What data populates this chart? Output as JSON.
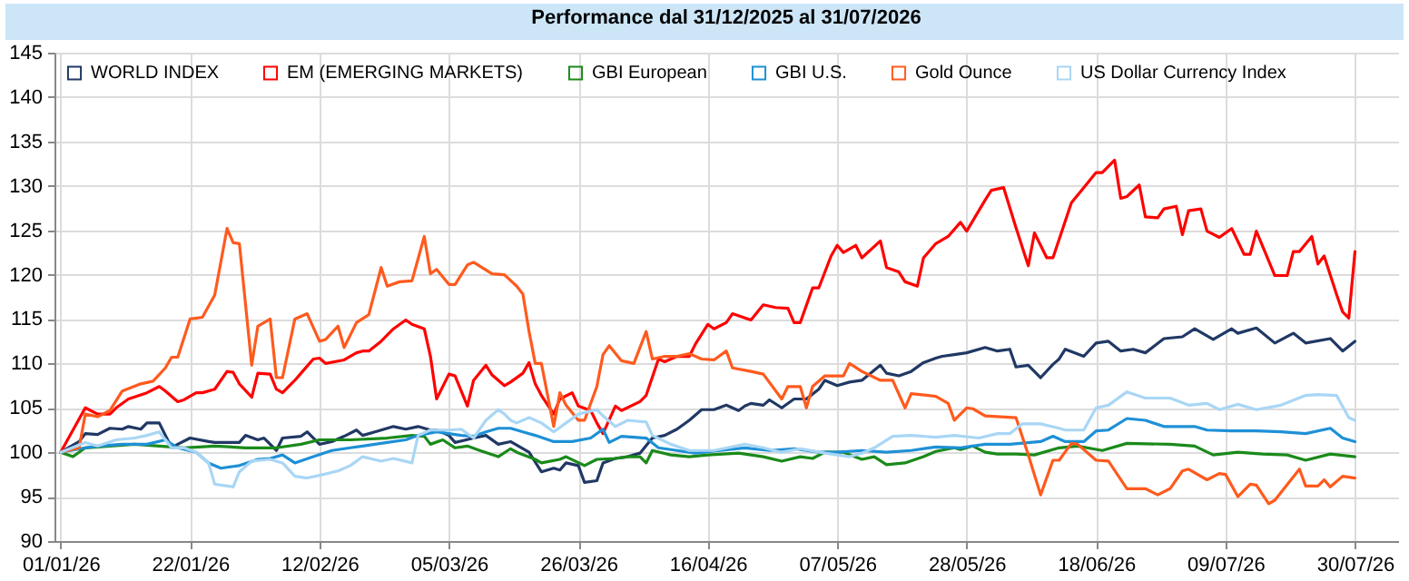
{
  "chart_data": {
    "type": "line",
    "title": "Performance dal 31/12/2025 al 31/07/2026",
    "xlim": [
      "2025-12-31",
      "2026-08-06"
    ],
    "xticks": [
      {
        "value": "2026-01-01",
        "label": "01/01/26"
      },
      {
        "value": "2026-01-22",
        "label": "22/01/26"
      },
      {
        "value": "2026-02-12",
        "label": "12/02/26"
      },
      {
        "value": "2026-03-05",
        "label": "05/03/26"
      },
      {
        "value": "2026-03-26",
        "label": "26/03/26"
      },
      {
        "value": "2026-04-16",
        "label": "16/04/26"
      },
      {
        "value": "2026-05-07",
        "label": "07/05/26"
      },
      {
        "value": "2026-05-28",
        "label": "28/05/26"
      },
      {
        "value": "2026-06-18",
        "label": "18/06/26"
      },
      {
        "value": "2026-07-09",
        "label": "09/07/26"
      },
      {
        "value": "2026-07-30",
        "label": "30/07/26"
      }
    ],
    "ylim": [
      90,
      145
    ],
    "yticks": [
      90,
      95,
      100,
      105,
      110,
      115,
      120,
      125,
      130,
      135,
      140,
      145
    ],
    "grid": true,
    "legend": "top left",
    "line_style": "solid",
    "marker": "none",
    "series": [
      {
        "name": "WORLD INDEX",
        "color": "#203864",
        "x": [
          "2026-01-01",
          "2026-01-04",
          "2026-01-05",
          "2026-01-07",
          "2026-01-09",
          "2026-01-11",
          "2026-01-12",
          "2026-01-14",
          "2026-01-15",
          "2026-01-17",
          "2026-01-19",
          "2026-01-20",
          "2026-01-22",
          "2026-01-25",
          "2026-01-26",
          "2026-01-30",
          "2026-01-31",
          "2026-02-02",
          "2026-02-03",
          "2026-02-05",
          "2026-02-06",
          "2026-02-09",
          "2026-02-10",
          "2026-02-12",
          "2026-02-14",
          "2026-02-16",
          "2026-02-18",
          "2026-02-19",
          "2026-02-21",
          "2026-02-24",
          "2026-02-26",
          "2026-02-28",
          "2026-03-02",
          "2026-03-03",
          "2026-03-05",
          "2026-03-06",
          "2026-03-09",
          "2026-03-11",
          "2026-03-13",
          "2026-03-15",
          "2026-03-18",
          "2026-03-20",
          "2026-03-22",
          "2026-03-23",
          "2026-03-24",
          "2026-03-26",
          "2026-03-27",
          "2026-03-29",
          "2026-03-30",
          "2026-04-01",
          "2026-04-03",
          "2026-04-05",
          "2026-04-07",
          "2026-04-09",
          "2026-04-11",
          "2026-04-13",
          "2026-04-15",
          "2026-04-17",
          "2026-04-19",
          "2026-04-21",
          "2026-04-22",
          "2026-04-23",
          "2026-04-25",
          "2026-04-26",
          "2026-04-28",
          "2026-04-30",
          "2026-05-02",
          "2026-05-04",
          "2026-05-05",
          "2026-05-07",
          "2026-05-09",
          "2026-05-11",
          "2026-05-14",
          "2026-05-15",
          "2026-05-17",
          "2026-05-19",
          "2026-05-21",
          "2026-05-23",
          "2026-05-24",
          "2026-05-26",
          "2026-05-28",
          "2026-05-31",
          "2026-06-02",
          "2026-06-04",
          "2026-06-05",
          "2026-06-07",
          "2026-06-09",
          "2026-06-11",
          "2026-06-12",
          "2026-06-13",
          "2026-06-16",
          "2026-06-18",
          "2026-06-20",
          "2026-06-22",
          "2026-06-24",
          "2026-06-26",
          "2026-06-29",
          "2026-07-02",
          "2026-07-04",
          "2026-07-07",
          "2026-07-10",
          "2026-07-11",
          "2026-07-14",
          "2026-07-17",
          "2026-07-20",
          "2026-07-22",
          "2026-07-26",
          "2026-07-28",
          "2026-07-30"
        ],
        "values": [
          100,
          101.2,
          102.1,
          102,
          102.7,
          102.6,
          102.9,
          102.6,
          103.3,
          103.3,
          100.5,
          100.9,
          101.6,
          101.2,
          101.1,
          101.1,
          101.9,
          101.4,
          101.6,
          100.2,
          101.6,
          101.8,
          102.3,
          100.9,
          101.2,
          101.8,
          102.5,
          101.9,
          102.3,
          102.9,
          102.6,
          102.9,
          102.5,
          102.5,
          101.9,
          101.1,
          101.6,
          101.9,
          100.9,
          101.2,
          100,
          97.8,
          98.2,
          98,
          98.8,
          98.5,
          96.6,
          96.8,
          98.8,
          99.3,
          99.5,
          99.9,
          101.6,
          101.9,
          102.6,
          103.6,
          104.8,
          104.8,
          105.3,
          104.7,
          105.2,
          105.5,
          105.3,
          105.9,
          105,
          106,
          106,
          107.1,
          108.1,
          107.5,
          107.9,
          108.1,
          109.8,
          108.9,
          108.6,
          109.1,
          110.1,
          110.6,
          110.8,
          111,
          111.2,
          111.8,
          111.4,
          111.6,
          109.6,
          109.8,
          108.4,
          109.9,
          110.5,
          111.6,
          110.8,
          112.3,
          112.5,
          111.4,
          111.6,
          111.2,
          112.8,
          113,
          113.9,
          112.7,
          113.9,
          113.4,
          114,
          112.3,
          113.4,
          112.3,
          112.8,
          111.4,
          112.5
        ]
      },
      {
        "name": "EM (EMERGING MARKETS)",
        "color": "#ff0000",
        "x": [
          "2026-01-01",
          "2026-01-05",
          "2026-01-07",
          "2026-01-09",
          "2026-01-10",
          "2026-01-12",
          "2026-01-15",
          "2026-01-17",
          "2026-01-18",
          "2026-01-20",
          "2026-01-21",
          "2026-01-23",
          "2026-01-24",
          "2026-01-26",
          "2026-01-28",
          "2026-01-29",
          "2026-01-30",
          "2026-02-01",
          "2026-02-02",
          "2026-02-04",
          "2026-02-05",
          "2026-02-06",
          "2026-02-08",
          "2026-02-09",
          "2026-02-11",
          "2026-02-12",
          "2026-02-13",
          "2026-02-16",
          "2026-02-18",
          "2026-02-19",
          "2026-02-20",
          "2026-02-22",
          "2026-02-24",
          "2026-02-26",
          "2026-02-27",
          "2026-03-01",
          "2026-03-02",
          "2026-03-03",
          "2026-03-05",
          "2026-03-06",
          "2026-03-08",
          "2026-03-09",
          "2026-03-11",
          "2026-03-12",
          "2026-03-14",
          "2026-03-15",
          "2026-03-17",
          "2026-03-18",
          "2026-03-19",
          "2026-03-20",
          "2026-03-22",
          "2026-03-23",
          "2026-03-25",
          "2026-03-26",
          "2026-03-28",
          "2026-03-29",
          "2026-03-30",
          "2026-04-01",
          "2026-04-02",
          "2026-04-05",
          "2026-04-06",
          "2026-04-08",
          "2026-04-09",
          "2026-04-11",
          "2026-04-13",
          "2026-04-14",
          "2026-04-16",
          "2026-04-17",
          "2026-04-19",
          "2026-04-20",
          "2026-04-23",
          "2026-04-25",
          "2026-04-27",
          "2026-04-29",
          "2026-04-30",
          "2026-05-01",
          "2026-05-03",
          "2026-05-04",
          "2026-05-06",
          "2026-05-07",
          "2026-05-08",
          "2026-05-10",
          "2026-05-11",
          "2026-05-14",
          "2026-05-15",
          "2026-05-17",
          "2026-05-18",
          "2026-05-20",
          "2026-05-21",
          "2026-05-23",
          "2026-05-25",
          "2026-05-27",
          "2026-05-28",
          "2026-05-31",
          "2026-06-01",
          "2026-06-03",
          "2026-06-05",
          "2026-06-07",
          "2026-06-08",
          "2026-06-10",
          "2026-06-11",
          "2026-06-14",
          "2026-06-16",
          "2026-06-18",
          "2026-06-19",
          "2026-06-21",
          "2026-06-22",
          "2026-06-23",
          "2026-06-25",
          "2026-06-26",
          "2026-06-28",
          "2026-06-29",
          "2026-07-01",
          "2026-07-02",
          "2026-07-03",
          "2026-07-05",
          "2026-07-06",
          "2026-07-08",
          "2026-07-10",
          "2026-07-12",
          "2026-07-13",
          "2026-07-14",
          "2026-07-17",
          "2026-07-19",
          "2026-07-20",
          "2026-07-21",
          "2026-07-23",
          "2026-07-24",
          "2026-07-25",
          "2026-07-27",
          "2026-07-28",
          "2026-07-29",
          "2026-07-30"
        ],
        "values": [
          100,
          105,
          104.3,
          104.3,
          105,
          106,
          106.7,
          107.4,
          106.9,
          105.7,
          105.9,
          106.7,
          106.7,
          107.1,
          109.1,
          109,
          107.7,
          106.2,
          108.9,
          108.8,
          107.1,
          106.7,
          108.1,
          108.9,
          110.5,
          110.6,
          110,
          110.4,
          111.2,
          111.4,
          111.4,
          112.5,
          113.9,
          114.9,
          114.4,
          113.9,
          110.8,
          106,
          108.8,
          108.6,
          105.2,
          108.1,
          109.8,
          108.7,
          107.5,
          107.9,
          108.9,
          110.1,
          107.7,
          106.4,
          104.3,
          106,
          106.7,
          105.2,
          104.7,
          103.3,
          102.1,
          105.2,
          104.7,
          105.7,
          106.4,
          110.5,
          110.2,
          110.8,
          110.8,
          112.2,
          114.4,
          113.9,
          114.6,
          115.6,
          114.9,
          116.6,
          116.3,
          116.2,
          114.6,
          114.6,
          118.5,
          118.5,
          122.1,
          123.3,
          122.5,
          123.3,
          121.9,
          123.8,
          120.8,
          120.3,
          119.2,
          118.7,
          121.9,
          123.5,
          124.3,
          125.9,
          124.9,
          128.4,
          129.5,
          129.8,
          125.3,
          121,
          124.7,
          121.9,
          121.9,
          128.1,
          129.8,
          131.5,
          131.5,
          132.9,
          128.6,
          128.8,
          130.1,
          126.5,
          126.4,
          127.4,
          127.7,
          124.5,
          127.2,
          127.4,
          124.9,
          124.2,
          125.2,
          122.3,
          122.3,
          124.9,
          119.9,
          119.9,
          122.6,
          122.6,
          124.3,
          121.2,
          122.1,
          117.8,
          115.8,
          115.1,
          122.6
        ]
      },
      {
        "name": "GBI European",
        "color": "#1a8a1a",
        "x": [
          "2026-01-01",
          "2026-01-03",
          "2026-01-05",
          "2026-01-09",
          "2026-01-13",
          "2026-01-17",
          "2026-01-21",
          "2026-01-26",
          "2026-01-31",
          "2026-02-05",
          "2026-02-09",
          "2026-02-12",
          "2026-02-17",
          "2026-02-23",
          "2026-02-27",
          "2026-03-01",
          "2026-03-02",
          "2026-03-04",
          "2026-03-06",
          "2026-03-08",
          "2026-03-10",
          "2026-03-13",
          "2026-03-15",
          "2026-03-16",
          "2026-03-19",
          "2026-03-20",
          "2026-03-23",
          "2026-03-24",
          "2026-03-27",
          "2026-03-29",
          "2026-04-01",
          "2026-04-03",
          "2026-04-05",
          "2026-04-06",
          "2026-04-07",
          "2026-04-10",
          "2026-04-13",
          "2026-04-16",
          "2026-04-21",
          "2026-04-25",
          "2026-04-28",
          "2026-05-01",
          "2026-05-03",
          "2026-05-05",
          "2026-05-08",
          "2026-05-11",
          "2026-05-13",
          "2026-05-15",
          "2026-05-18",
          "2026-05-21",
          "2026-05-23",
          "2026-05-26",
          "2026-05-27",
          "2026-05-29",
          "2026-05-31",
          "2026-06-02",
          "2026-06-05",
          "2026-06-08",
          "2026-06-12",
          "2026-06-15",
          "2026-06-19",
          "2026-06-23",
          "2026-06-30",
          "2026-07-04",
          "2026-07-07",
          "2026-07-11",
          "2026-07-15",
          "2026-07-19",
          "2026-07-22",
          "2026-07-26",
          "2026-07-30"
        ],
        "values": [
          100,
          99.5,
          100.5,
          100.7,
          100.9,
          100.7,
          100.5,
          100.7,
          100.5,
          100.5,
          100.9,
          101.4,
          101.4,
          101.6,
          101.9,
          101.8,
          100.9,
          101.4,
          100.5,
          100.7,
          100.2,
          99.5,
          100.4,
          100,
          99.2,
          98.8,
          99.2,
          99.5,
          98.5,
          99.2,
          99.3,
          99.5,
          99.5,
          98.8,
          100.2,
          99.7,
          99.5,
          99.7,
          99.9,
          99.5,
          99,
          99.5,
          99.3,
          100,
          100,
          99.2,
          99.5,
          98.6,
          98.8,
          99.5,
          100.1,
          100.5,
          100.3,
          100.7,
          100,
          99.8,
          99.8,
          99.7,
          100.5,
          100.7,
          100.2,
          101,
          100.9,
          100.7,
          99.7,
          100,
          99.8,
          99.7,
          99.1,
          99.8,
          99.5
        ]
      },
      {
        "name": "GBI U.S.",
        "color": "#1e90d6",
        "x": [
          "2026-01-01",
          "2026-01-05",
          "2026-01-07",
          "2026-01-11",
          "2026-01-15",
          "2026-01-18",
          "2026-01-20",
          "2026-01-23",
          "2026-01-25",
          "2026-01-27",
          "2026-01-30",
          "2026-02-02",
          "2026-02-04",
          "2026-02-06",
          "2026-02-08",
          "2026-02-11",
          "2026-02-14",
          "2026-02-17",
          "2026-02-19",
          "2026-02-23",
          "2026-02-26",
          "2026-02-28",
          "2026-03-03",
          "2026-03-05",
          "2026-03-07",
          "2026-03-09",
          "2026-03-11",
          "2026-03-13",
          "2026-03-15",
          "2026-03-17",
          "2026-03-19",
          "2026-03-22",
          "2026-03-25",
          "2026-03-28",
          "2026-03-30",
          "2026-03-31",
          "2026-04-02",
          "2026-04-06",
          "2026-04-08",
          "2026-04-11",
          "2026-04-14",
          "2026-04-18",
          "2026-04-22",
          "2026-04-26",
          "2026-04-30",
          "2026-05-04",
          "2026-05-07",
          "2026-05-11",
          "2026-05-15",
          "2026-05-19",
          "2026-05-23",
          "2026-05-27",
          "2026-05-31",
          "2026-06-04",
          "2026-06-09",
          "2026-06-11",
          "2026-06-13",
          "2026-06-16",
          "2026-06-18",
          "2026-06-20",
          "2026-06-23",
          "2026-06-26",
          "2026-06-29",
          "2026-07-02",
          "2026-07-04",
          "2026-07-06",
          "2026-07-10",
          "2026-07-14",
          "2026-07-18",
          "2026-07-22",
          "2026-07-26",
          "2026-07-28",
          "2026-07-30"
        ],
        "values": [
          100,
          100.5,
          100.7,
          100.9,
          100.9,
          101.4,
          100.5,
          100,
          98.8,
          98.2,
          98.5,
          99.2,
          99.3,
          99.7,
          98.8,
          99.5,
          100.2,
          100.5,
          100.7,
          101.1,
          101.4,
          101.9,
          102.3,
          102.1,
          101.9,
          101.8,
          102.3,
          102.7,
          102.7,
          102.3,
          101.9,
          101.2,
          101.2,
          101.6,
          102.6,
          101.1,
          101.8,
          101.6,
          100.5,
          100.2,
          99.9,
          100.2,
          100.5,
          100.2,
          100.4,
          100,
          100,
          100.2,
          100,
          100.2,
          100.6,
          100.5,
          100.9,
          100.9,
          101.2,
          101.8,
          101.2,
          101.2,
          102.4,
          102.5,
          103.8,
          103.6,
          102.9,
          102.9,
          102.9,
          102.5,
          102.4,
          102.4,
          102.3,
          102.1,
          102.7,
          101.6,
          101.2
        ]
      },
      {
        "name": "Gold Ounce",
        "color": "#ff5a1e",
        "x": [
          "2026-01-01",
          "2026-01-04",
          "2026-01-05",
          "2026-01-07",
          "2026-01-09",
          "2026-01-11",
          "2026-01-14",
          "2026-01-16",
          "2026-01-18",
          "2026-01-19",
          "2026-01-20",
          "2026-01-22",
          "2026-01-24",
          "2026-01-26",
          "2026-01-28",
          "2026-01-29",
          "2026-01-30",
          "2026-02-01",
          "2026-02-02",
          "2026-02-04",
          "2026-02-05",
          "2026-02-06",
          "2026-02-08",
          "2026-02-10",
          "2026-02-12",
          "2026-02-13",
          "2026-02-15",
          "2026-02-16",
          "2026-02-18",
          "2026-02-20",
          "2026-02-22",
          "2026-02-23",
          "2026-02-25",
          "2026-02-27",
          "2026-03-01",
          "2026-03-02",
          "2026-03-03",
          "2026-03-05",
          "2026-03-06",
          "2026-03-08",
          "2026-03-09",
          "2026-03-12",
          "2026-03-14",
          "2026-03-16",
          "2026-03-17",
          "2026-03-18",
          "2026-03-19",
          "2026-03-20",
          "2026-03-22",
          "2026-03-23",
          "2026-03-24",
          "2026-03-26",
          "2026-03-27",
          "2026-03-29",
          "2026-03-30",
          "2026-03-31",
          "2026-04-02",
          "2026-04-04",
          "2026-04-06",
          "2026-04-07",
          "2026-04-09",
          "2026-04-11",
          "2026-04-13",
          "2026-04-15",
          "2026-04-17",
          "2026-04-19",
          "2026-04-20",
          "2026-04-23",
          "2026-04-25",
          "2026-04-28",
          "2026-04-29",
          "2026-05-01",
          "2026-05-02",
          "2026-05-03",
          "2026-05-05",
          "2026-05-08",
          "2026-05-09",
          "2026-05-11",
          "2026-05-14",
          "2026-05-16",
          "2026-05-18",
          "2026-05-19",
          "2026-05-23",
          "2026-05-25",
          "2026-05-26",
          "2026-05-28",
          "2026-05-29",
          "2026-05-31",
          "2026-06-05",
          "2026-06-07",
          "2026-06-09",
          "2026-06-11",
          "2026-06-12",
          "2026-06-14",
          "2026-06-15",
          "2026-06-18",
          "2026-06-20",
          "2026-06-23",
          "2026-06-26",
          "2026-06-28",
          "2026-06-30",
          "2026-07-02",
          "2026-07-03",
          "2026-07-06",
          "2026-07-08",
          "2026-07-09",
          "2026-07-11",
          "2026-07-13",
          "2026-07-14",
          "2026-07-16",
          "2026-07-17",
          "2026-07-21",
          "2026-07-22",
          "2026-07-24",
          "2026-07-25",
          "2026-07-26",
          "2026-07-28",
          "2026-07-30"
        ],
        "values": [
          100,
          100.5,
          104.3,
          104,
          104.7,
          106.9,
          107.7,
          108,
          109.5,
          110.7,
          110.7,
          115,
          115.2,
          117.7,
          125.2,
          123.6,
          123.5,
          109.8,
          114.2,
          115,
          108.4,
          108.4,
          115,
          115.6,
          112.5,
          112.7,
          114.2,
          111.8,
          114.6,
          115.5,
          120.8,
          118.7,
          119.2,
          119.3,
          124.3,
          120.1,
          120.6,
          118.9,
          118.9,
          121.1,
          121.4,
          120.1,
          120,
          118.7,
          117.8,
          113.6,
          110,
          110,
          102.9,
          106.7,
          105.3,
          103.6,
          103.6,
          107.4,
          111,
          112,
          110.3,
          110,
          113.6,
          110.5,
          110.8,
          110.8,
          111.1,
          110.5,
          110.4,
          111.4,
          109.5,
          109.1,
          108.8,
          106,
          107.4,
          107.4,
          105,
          107.4,
          108.6,
          108.6,
          110,
          109.1,
          108.1,
          108.1,
          105,
          106.6,
          106.3,
          105.5,
          103.6,
          105,
          104.9,
          104.1,
          103.9,
          99.7,
          95.2,
          99.1,
          99.1,
          101,
          100.9,
          99.1,
          99,
          95.9,
          95.9,
          95.2,
          95.9,
          97.9,
          98.1,
          96.9,
          97.6,
          97.5,
          95,
          96.4,
          96.3,
          94.2,
          94.6,
          98.1,
          96.2,
          96.2,
          96.9,
          96.1,
          97.3,
          97.1
        ]
      },
      {
        "name": "US Dollar Currency Index",
        "color": "#a9d6f5",
        "x": [
          "2026-01-01",
          "2026-01-05",
          "2026-01-07",
          "2026-01-10",
          "2026-01-13",
          "2026-01-15",
          "2026-01-17",
          "2026-01-19",
          "2026-01-21",
          "2026-01-23",
          "2026-01-25",
          "2026-01-26",
          "2026-01-29",
          "2026-01-30",
          "2026-02-01",
          "2026-02-04",
          "2026-02-06",
          "2026-02-08",
          "2026-02-10",
          "2026-02-12",
          "2026-02-15",
          "2026-02-17",
          "2026-02-19",
          "2026-02-22",
          "2026-02-24",
          "2026-02-27",
          "2026-02-28",
          "2026-03-02",
          "2026-03-05",
          "2026-03-07",
          "2026-03-09",
          "2026-03-11",
          "2026-03-13",
          "2026-03-14",
          "2026-03-15",
          "2026-03-16",
          "2026-03-18",
          "2026-03-20",
          "2026-03-22",
          "2026-03-24",
          "2026-03-26",
          "2026-03-29",
          "2026-03-30",
          "2026-04-01",
          "2026-04-03",
          "2026-04-06",
          "2026-04-07",
          "2026-04-10",
          "2026-04-13",
          "2026-04-17",
          "2026-04-22",
          "2026-04-25",
          "2026-04-28",
          "2026-05-01",
          "2026-05-05",
          "2026-05-09",
          "2026-05-11",
          "2026-05-13",
          "2026-05-16",
          "2026-05-19",
          "2026-05-23",
          "2026-05-26",
          "2026-05-30",
          "2026-06-02",
          "2026-06-04",
          "2026-06-06",
          "2026-06-09",
          "2026-06-12",
          "2026-06-13",
          "2026-06-16",
          "2026-06-18",
          "2026-06-20",
          "2026-06-23",
          "2026-06-26",
          "2026-06-30",
          "2026-07-03",
          "2026-07-06",
          "2026-07-08",
          "2026-07-11",
          "2026-07-14",
          "2026-07-18",
          "2026-07-22",
          "2026-07-24",
          "2026-07-27",
          "2026-07-29",
          "2026-07-30"
        ],
        "values": [
          100,
          101.1,
          100.7,
          101.4,
          101.6,
          101.9,
          102.3,
          100.5,
          100.5,
          100,
          98.8,
          96.4,
          96.1,
          97.8,
          99,
          99.2,
          98.8,
          97.3,
          97.1,
          97.4,
          97.9,
          98.5,
          99.5,
          99,
          99.3,
          98.8,
          101.9,
          102.5,
          102.5,
          102.6,
          101.6,
          103.6,
          104.8,
          104.3,
          103.6,
          103.3,
          103.9,
          103.3,
          102.3,
          103.3,
          104.3,
          104.8,
          104.1,
          102.9,
          103.6,
          103.4,
          101.9,
          100.9,
          100.2,
          100.2,
          100.9,
          100.5,
          100,
          100.4,
          99.9,
          99.5,
          99.9,
          100.5,
          101.8,
          101.9,
          101.7,
          101.9,
          101.6,
          102.1,
          102.1,
          103.2,
          103.2,
          102.7,
          102.5,
          102.5,
          105,
          105.3,
          106.8,
          106.1,
          106.1,
          105.3,
          105.5,
          104.8,
          105.4,
          104.8,
          105.3,
          106.4,
          106.5,
          106.4,
          103.9,
          103.6
        ]
      }
    ]
  }
}
